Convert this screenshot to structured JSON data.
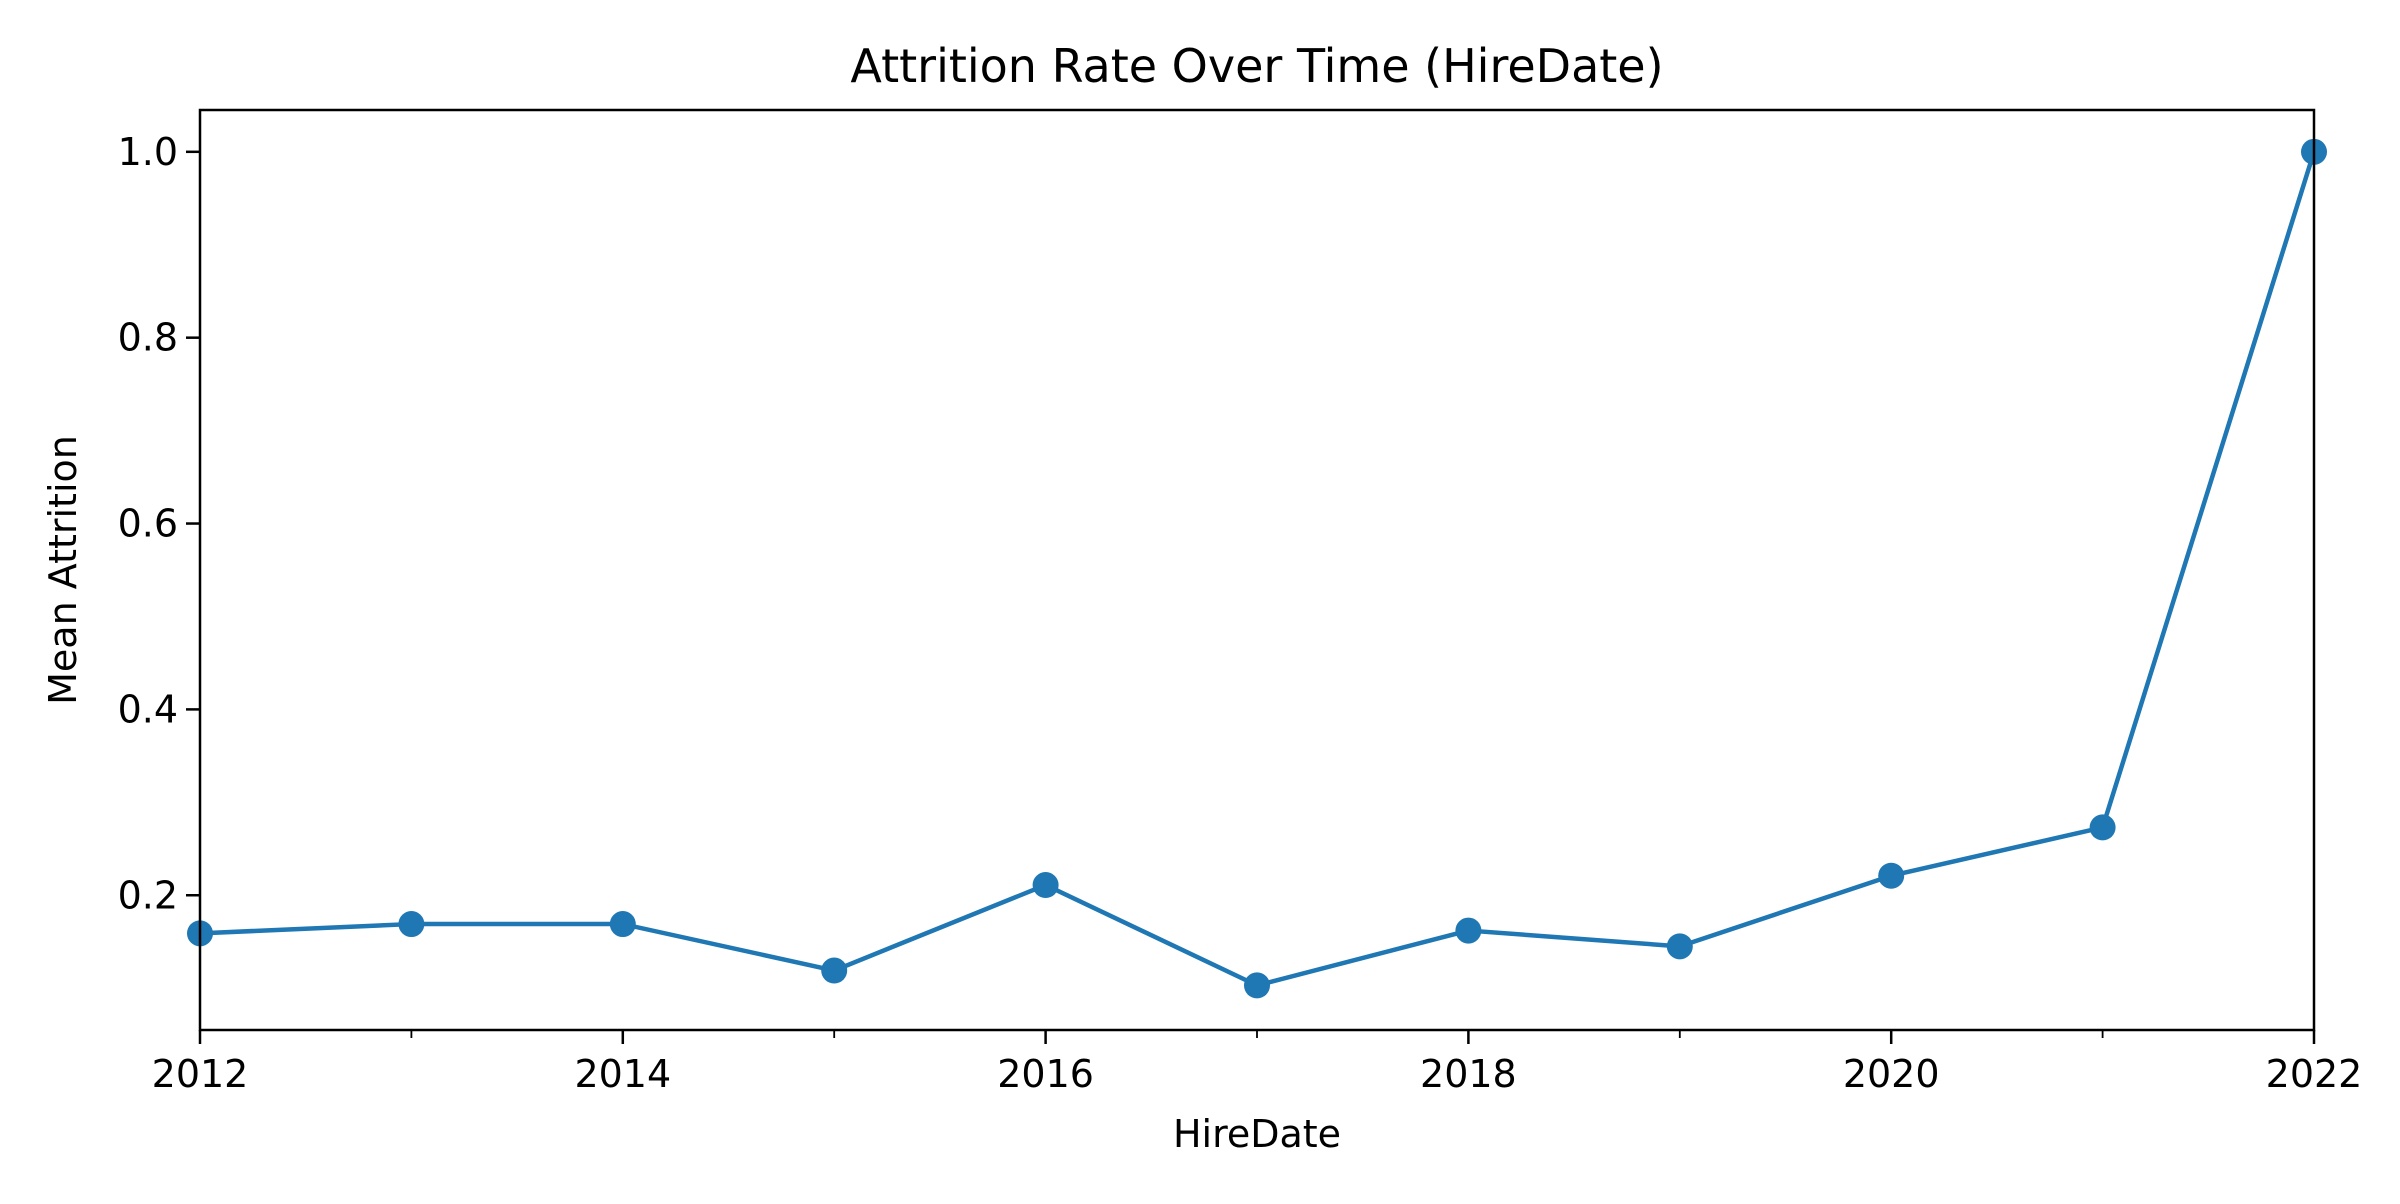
{
  "chart_data": {
    "type": "line",
    "title": "Attrition Rate Over Time (HireDate)",
    "xlabel": "HireDate",
    "ylabel": "Mean Attrition",
    "x": [
      2012,
      2013,
      2014,
      2015,
      2016,
      2017,
      2018,
      2019,
      2020,
      2021,
      2022
    ],
    "series": [
      {
        "values": [
          0.159,
          0.169,
          0.169,
          0.119,
          0.211,
          0.103,
          0.162,
          0.145,
          0.221,
          0.273,
          1.0
        ]
      }
    ],
    "xlim": [
      2012,
      2022
    ],
    "ylim": [
      0.055,
      1.045
    ],
    "x_ticks": [
      2012,
      2014,
      2016,
      2018,
      2020,
      2022
    ],
    "x_tick_labels": [
      "2012",
      "2014",
      "2016",
      "2018",
      "2020",
      "2022"
    ],
    "x_minor_ticks": [
      2013,
      2015,
      2017,
      2019,
      2021
    ],
    "y_ticks": [
      0.2,
      0.4,
      0.6,
      0.8,
      1.0
    ],
    "y_tick_labels": [
      "0.2",
      "0.4",
      "0.6",
      "0.8",
      "1.0"
    ],
    "grid": false,
    "legend": "none",
    "colors": {
      "series": "#1f77b4",
      "axes": "#000000",
      "background": "#ffffff"
    }
  }
}
